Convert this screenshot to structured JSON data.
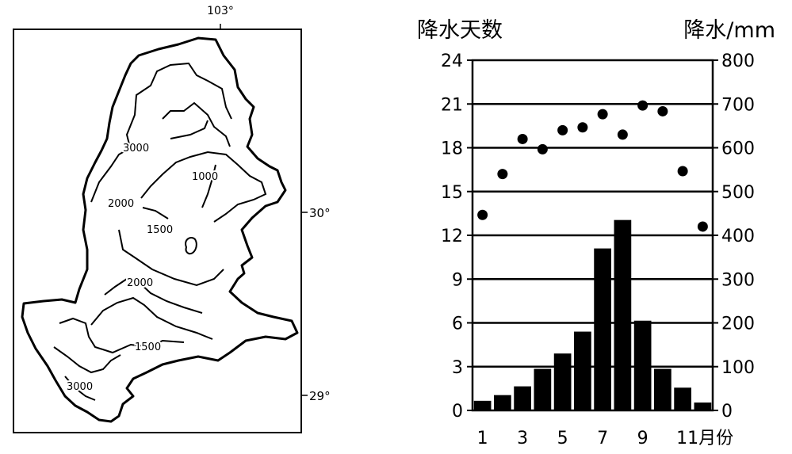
{
  "map": {
    "longitude_label": "103°",
    "latitude_labels": [
      "30°",
      "29°"
    ],
    "contour_labels": [
      "3000",
      "1000",
      "2000",
      "1500",
      "2000",
      "1500",
      "3000"
    ]
  },
  "chart_data": {
    "type": "bar",
    "left_axis_title": "降水天数",
    "right_axis_title": "降水/mm",
    "x_tick_labels": [
      "1",
      "3",
      "5",
      "7",
      "9",
      "11月份"
    ],
    "months": [
      1,
      2,
      3,
      4,
      5,
      6,
      7,
      8,
      9,
      10,
      11,
      12
    ],
    "left_ticks": [
      0,
      3,
      6,
      9,
      12,
      15,
      18,
      21,
      24
    ],
    "right_ticks": [
      0,
      100,
      200,
      300,
      400,
      500,
      600,
      700,
      800
    ],
    "left_ylim": [
      0,
      24
    ],
    "right_ylim": [
      0,
      800
    ],
    "grid": true,
    "series": [
      {
        "kind": "bar",
        "axis": "right",
        "values": [
          22,
          35,
          55,
          95,
          130,
          180,
          370,
          435,
          205,
          95,
          52,
          18
        ]
      },
      {
        "kind": "scatter",
        "axis": "left",
        "values": [
          13.4,
          16.2,
          18.6,
          17.9,
          19.2,
          19.4,
          20.3,
          18.9,
          20.9,
          20.5,
          16.4,
          12.6
        ]
      }
    ]
  }
}
